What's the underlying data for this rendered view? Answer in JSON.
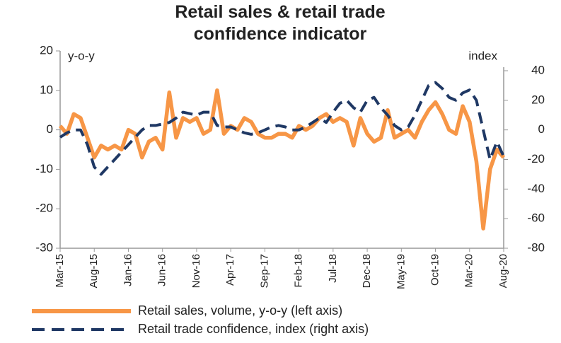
{
  "chart_data": {
    "type": "line",
    "title": "Retail sales & retail trade confidence indicator",
    "y_label": "y-o-y",
    "y2_label": "index",
    "categories": [
      "Mar-15",
      null,
      null,
      null,
      null,
      "Aug-15",
      null,
      null,
      null,
      null,
      "Jan-16",
      null,
      null,
      null,
      null,
      "Jun-16",
      null,
      null,
      null,
      null,
      "Nov-16",
      null,
      null,
      null,
      null,
      "Apr-17",
      null,
      null,
      null,
      null,
      "Sep-17",
      null,
      null,
      null,
      null,
      "Feb-18",
      null,
      null,
      null,
      null,
      "Jul-18",
      null,
      null,
      null,
      null,
      "Dec-18",
      null,
      null,
      null,
      null,
      "May-19",
      null,
      null,
      null,
      null,
      "Oct-19",
      null,
      null,
      null,
      null,
      "Mar-20",
      null,
      null,
      null,
      null,
      "Aug-20"
    ],
    "series": [
      {
        "name": "Retail sales, volume, y-o-y (left axis)",
        "color": "#f79646",
        "dash": false,
        "axis": "y",
        "values": [
          1,
          -1,
          4,
          3,
          -2,
          -7,
          -4,
          -5,
          -4,
          -5,
          0,
          -1,
          -7,
          -3,
          -2,
          -5,
          9.5,
          -2,
          3,
          2,
          3,
          -1,
          0,
          10,
          -1,
          1,
          0,
          3,
          2,
          -1,
          -2,
          -2,
          -1,
          -1,
          -2,
          1,
          0,
          1,
          3,
          4,
          2,
          3,
          2,
          -4,
          3,
          -1,
          -3,
          -2,
          5,
          -2,
          -1,
          0,
          -2,
          2,
          5,
          7,
          4,
          0,
          -1,
          6,
          2,
          -8,
          -25,
          -10,
          -5,
          -7
        ]
      },
      {
        "name": "Retail trade confidence, index (right axis)",
        "color": "#1f3864",
        "dash": true,
        "axis": "y2",
        "values": [
          -5,
          -2,
          0,
          0,
          -10,
          -25,
          -30,
          -25,
          -20,
          -15,
          -10,
          -5,
          0,
          3,
          3,
          4,
          5,
          8,
          12,
          11,
          10,
          12,
          12,
          3,
          2,
          2,
          0,
          -2,
          -3,
          -2,
          0,
          2,
          3,
          2,
          0,
          0,
          2,
          5,
          8,
          5,
          12,
          18,
          20,
          15,
          12,
          20,
          22,
          15,
          10,
          3,
          0,
          2,
          10,
          20,
          30,
          32,
          28,
          22,
          20,
          25,
          27,
          20,
          0,
          -20,
          -8,
          -18
        ]
      }
    ],
    "ylim": [
      -30,
      20
    ],
    "yticks": [
      -30,
      -20,
      -10,
      0,
      10,
      20
    ],
    "y2lim": [
      -80,
      40
    ],
    "y2ticks": [
      -80,
      -60,
      -40,
      -20,
      0,
      20,
      40
    ],
    "legend": "bottom"
  }
}
